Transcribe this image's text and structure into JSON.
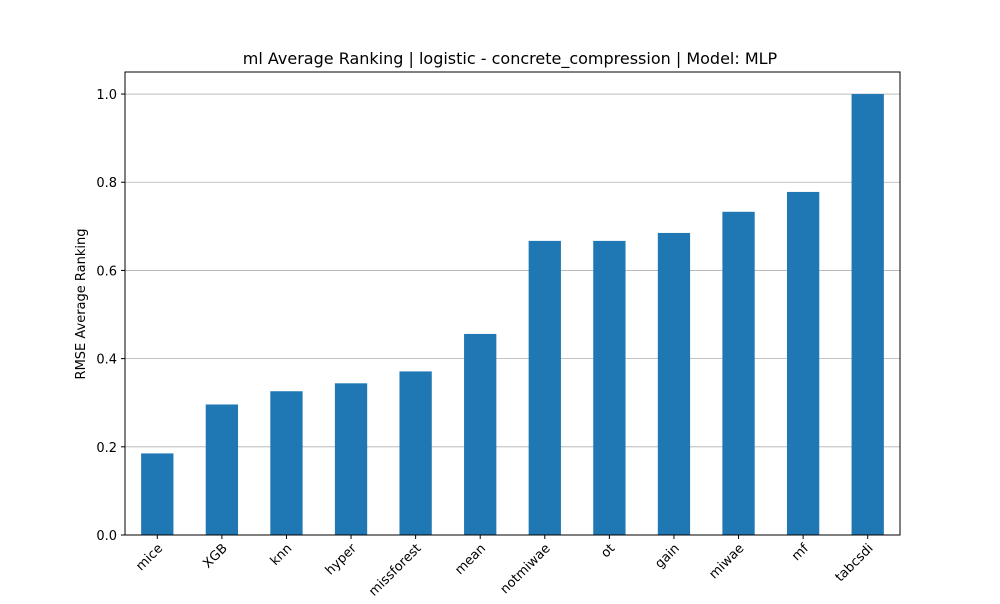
{
  "chart_data": {
    "type": "bar",
    "title": "ml Average Ranking | logistic - concrete_compression | Model: MLP",
    "xlabel": "",
    "ylabel": "RMSE Average Ranking",
    "categories": [
      "mice",
      "XGB",
      "knn",
      "hyper",
      "missforest",
      "mean",
      "notmiwae",
      "ot",
      "gain",
      "miwae",
      "mf",
      "tabcsdi"
    ],
    "values": [
      0.185,
      0.296,
      0.326,
      0.344,
      0.371,
      0.456,
      0.667,
      0.667,
      0.685,
      0.733,
      0.778,
      1.0
    ],
    "ylim": [
      0,
      1.05
    ],
    "yticks": [
      0.0,
      0.2,
      0.4,
      0.6,
      0.8,
      1.0
    ],
    "ytick_labels": [
      "0.0",
      "0.2",
      "0.4",
      "0.6",
      "0.8",
      "1.0"
    ],
    "grid": "y-major",
    "legend": "none",
    "bar_color": "#1f77b4",
    "grid_color": "#b0b0b0"
  }
}
